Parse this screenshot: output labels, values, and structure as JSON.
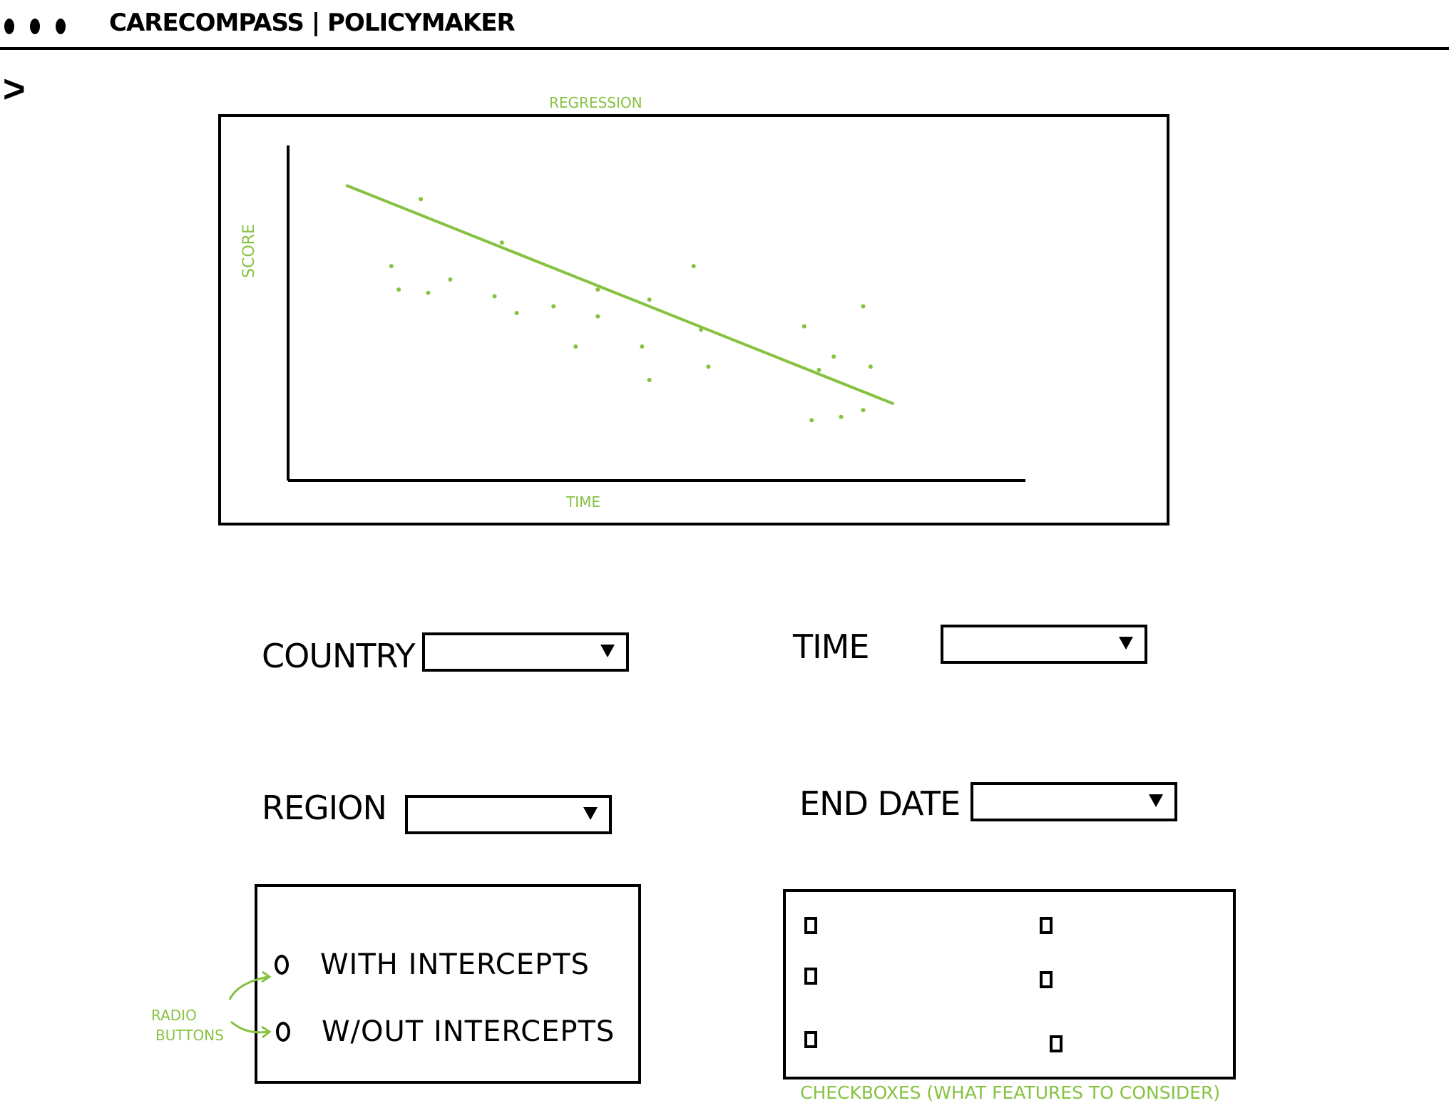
{
  "app": {
    "title": "CareCompass | PolicyMaker"
  },
  "nav": {
    "expand_label": ">"
  },
  "chart_data": {
    "type": "scatter",
    "title": "Regression",
    "xlabel": "Time",
    "ylabel": "Score",
    "grid": false,
    "points": [
      [
        18,
        84
      ],
      [
        14,
        64
      ],
      [
        15,
        57
      ],
      [
        19,
        56
      ],
      [
        22,
        60
      ],
      [
        29,
        71
      ],
      [
        28,
        55
      ],
      [
        31,
        50
      ],
      [
        36,
        52
      ],
      [
        39,
        40
      ],
      [
        42,
        57
      ],
      [
        42,
        49
      ],
      [
        49,
        54
      ],
      [
        49,
        30
      ],
      [
        48,
        40
      ],
      [
        55,
        64
      ],
      [
        56,
        45
      ],
      [
        57,
        34
      ],
      [
        70,
        46
      ],
      [
        74,
        37
      ],
      [
        72,
        33
      ],
      [
        71,
        18
      ],
      [
        78,
        21
      ],
      [
        75,
        19
      ],
      [
        78,
        52
      ],
      [
        79,
        34
      ]
    ],
    "fit_line": [
      [
        8,
        88
      ],
      [
        82,
        23
      ]
    ],
    "series_color": "#86c240",
    "axis_color": "#000000"
  },
  "filters": {
    "country": {
      "label": "Country",
      "value": ""
    },
    "time": {
      "label": "Time",
      "value": ""
    },
    "region": {
      "label": "Region",
      "value": ""
    },
    "end_date": {
      "label": "End Date",
      "value": ""
    }
  },
  "intercepts": {
    "options": [
      {
        "label": "With Intercepts",
        "selected": false
      },
      {
        "label": "W/out Intercepts",
        "selected": false
      }
    ],
    "annotation": [
      "Radio",
      "Buttons"
    ]
  },
  "features": {
    "checkbox_count": 6,
    "caption": "Checkboxes (What features to consider)"
  },
  "colors": {
    "accent": "#86c240",
    "ink": "#000000",
    "background": "#ffffff"
  }
}
